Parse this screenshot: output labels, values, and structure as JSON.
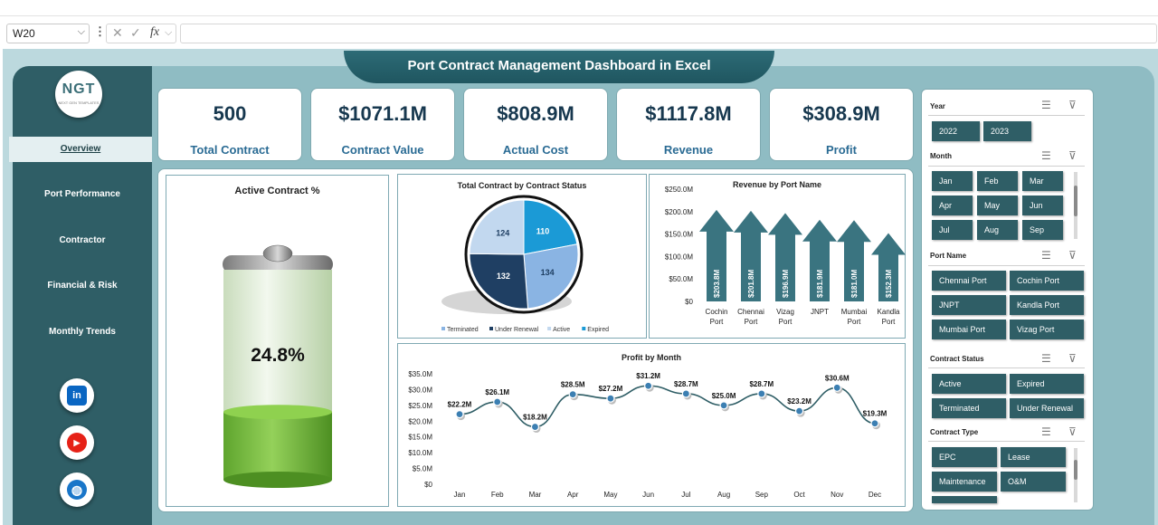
{
  "excel": {
    "name_box": "W20",
    "fx_label": "fx"
  },
  "dashboard": {
    "title": "Port Contract Management  Dashboard in Excel"
  },
  "logo": {
    "text": "NGT",
    "subtext": "NEXT GEN TEMPLATES"
  },
  "sidebar": {
    "items": [
      {
        "label": "Overview"
      },
      {
        "label": "Port Performance"
      },
      {
        "label": "Contractor"
      },
      {
        "label": "Financial & Risk"
      },
      {
        "label": "Monthly Trends"
      }
    ],
    "social": [
      {
        "name": "linkedin-icon",
        "label": "in",
        "color": "#0a66c2"
      },
      {
        "name": "youtube-icon",
        "label": "▶",
        "color": "#e62117"
      },
      {
        "name": "globe-icon",
        "label": "◍",
        "color": "#1976c9"
      }
    ]
  },
  "kpis": [
    {
      "value": "500",
      "label": "Total Contract"
    },
    {
      "value": "$1071.1M",
      "label": "Contract Value"
    },
    {
      "value": "$808.9M",
      "label": "Actual Cost"
    },
    {
      "value": "$1117.8M",
      "label": "Revenue"
    },
    {
      "value": "$308.9M",
      "label": "Profit"
    }
  ],
  "slicers": {
    "year": {
      "title": "Year",
      "options": [
        "2022",
        "2023"
      ]
    },
    "month": {
      "title": "Month",
      "options": [
        "Jan",
        "Feb",
        "Mar",
        "Apr",
        "May",
        "Jun",
        "Jul",
        "Aug",
        "Sep"
      ]
    },
    "port_name": {
      "title": "Port Name",
      "options": [
        "Chennai Port",
        "Cochin Port",
        "JNPT",
        "Kandla Port",
        "Mumbai Port",
        "Vizag Port"
      ]
    },
    "contract_status": {
      "title": "Contract Status",
      "options": [
        "Active",
        "Expired",
        "Terminated",
        "Under Renewal"
      ]
    },
    "contract_type": {
      "title": "Contract Type",
      "options": [
        "EPC",
        "Lease",
        "Maintenance",
        "O&M"
      ]
    }
  },
  "colors": {
    "sidebar": "#2f5e66",
    "accent": "#2a6b94",
    "arrow": "#3a7480",
    "battery_fill": "#7dc242"
  },
  "chart_data": [
    {
      "type": "gauge",
      "title": "Active Contract %",
      "value": 24.8,
      "display": "24.8%",
      "max": 100
    },
    {
      "type": "pie",
      "title": "Total Contract by Contract Status",
      "labels": [
        "Terminated",
        "Under Renewal",
        "Active",
        "Expired"
      ],
      "values": [
        134,
        132,
        124,
        110
      ],
      "colors": [
        "#8ab4e3",
        "#1f3f63",
        "#c2d8ef",
        "#1b9ad6"
      ],
      "legend": "bottom"
    },
    {
      "type": "bar",
      "title": "Revenue by Port Name",
      "categories": [
        "Cochin Port",
        "Chennai Port",
        "Vizag Port",
        "JNPT",
        "Mumbai Port",
        "Kandla Port"
      ],
      "values": [
        203.8,
        201.8,
        196.9,
        181.9,
        181.0,
        152.3
      ],
      "labels": [
        "$203.8M",
        "$201.8M",
        "$196.9M",
        "$181.9M",
        "$181.0M",
        "$152.3M"
      ],
      "yticks": [
        "$0",
        "$50.0M",
        "$100.0M",
        "$150.0M",
        "$200.0M",
        "$250.0M"
      ],
      "ylim": [
        0,
        250
      ]
    },
    {
      "type": "line",
      "title": "Profit by Month",
      "categories": [
        "Jan",
        "Feb",
        "Mar",
        "Apr",
        "May",
        "Jun",
        "Jul",
        "Aug",
        "Sep",
        "Oct",
        "Nov",
        "Dec"
      ],
      "values": [
        22.2,
        26.1,
        18.2,
        28.5,
        27.2,
        31.2,
        28.7,
        25.0,
        28.7,
        23.2,
        30.6,
        19.3
      ],
      "labels": [
        "$22.2M",
        "$26.1M",
        "$18.2M",
        "$28.5M",
        "$27.2M",
        "$31.2M",
        "$28.7M",
        "$25.0M",
        "$28.7M",
        "$23.2M",
        "$30.6M",
        "$19.3M"
      ],
      "yticks": [
        "$0",
        "$5.0M",
        "$10.0M",
        "$15.0M",
        "$20.0M",
        "$25.0M",
        "$30.0M",
        "$35.0M"
      ],
      "ylim": [
        0,
        35
      ]
    }
  ]
}
